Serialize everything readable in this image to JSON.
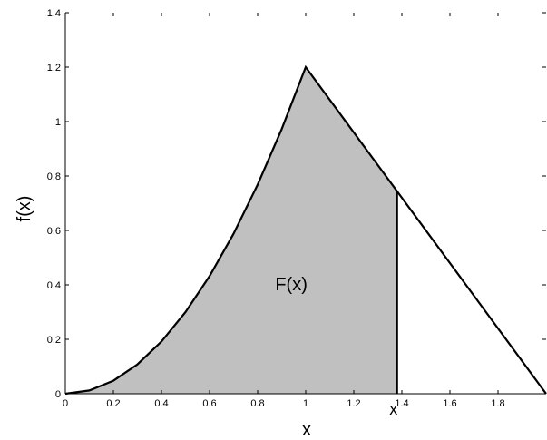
{
  "chart_data": {
    "type": "area",
    "title": "",
    "xlabel": "x",
    "ylabel": "f(x)",
    "xlim": [
      0,
      2
    ],
    "ylim": [
      0,
      1.4
    ],
    "x_ticks": [
      0,
      0.2,
      0.4,
      0.6,
      0.8,
      1,
      1.2,
      1.4,
      1.6,
      1.8
    ],
    "x_tick_labels": [
      "0",
      "0.2",
      "0.4",
      "0.6",
      "0.8",
      "1",
      "1.2",
      "1.4",
      "1.6",
      "1.8"
    ],
    "y_ticks": [
      0,
      0.2,
      0.4,
      0.6,
      0.8,
      1,
      1.2,
      1.4
    ],
    "y_tick_labels": [
      "0",
      "0.2",
      "0.4",
      "0.6",
      "0.8",
      "1",
      "1.2",
      "1.4"
    ],
    "grid": false,
    "series": [
      {
        "x": [
          0,
          0.1,
          0.2,
          0.3,
          0.4,
          0.5,
          0.6,
          0.7,
          0.8,
          0.9,
          1,
          1.2,
          1.4,
          1.6,
          1.8,
          2
        ],
        "y": [
          0,
          0.012,
          0.048,
          0.108,
          0.192,
          0.3,
          0.432,
          0.588,
          0.768,
          0.972,
          1.2,
          0.96,
          0.72,
          0.48,
          0.24,
          0
        ],
        "color": "#000000"
      }
    ],
    "shaded_region": {
      "x_from": 0,
      "x_to": 1.38,
      "fill": "#c0c0c0"
    },
    "annotations": [
      {
        "text": "F(x)",
        "x": 0.94,
        "y": 0.38
      },
      {
        "text": "x",
        "x": 1.38,
        "y": -0.06
      }
    ]
  }
}
